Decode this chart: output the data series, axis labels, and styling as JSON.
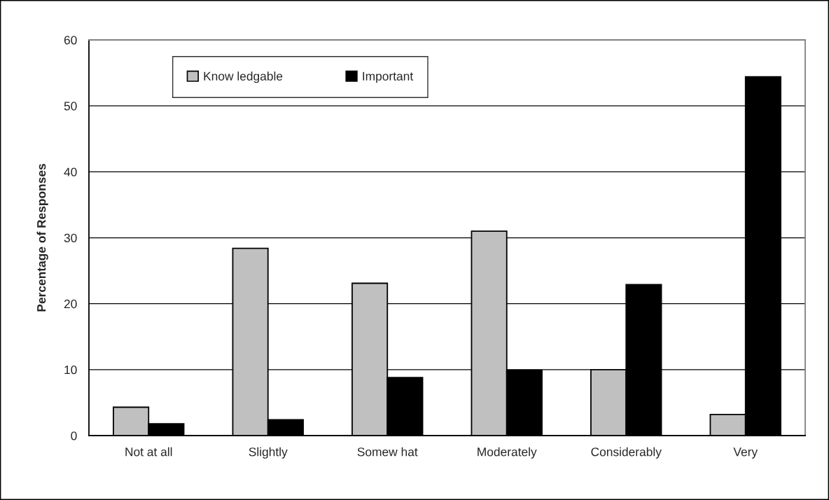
{
  "chart_data": {
    "type": "bar",
    "ylabel": "Percentage of Responses",
    "categories": [
      "Not at all",
      "Slightly",
      "Somew hat",
      "Moderately",
      "Considerably",
      "Very"
    ],
    "series": [
      {
        "name": "Know ledgable",
        "color": "#c0c0c0",
        "values": [
          4.3,
          28.4,
          23.1,
          31.0,
          10.0,
          3.2
        ]
      },
      {
        "name": "Important",
        "color": "#000000",
        "values": [
          1.8,
          2.4,
          8.8,
          9.9,
          22.9,
          54.4
        ]
      }
    ],
    "ylim": [
      0,
      60
    ],
    "yticks": [
      0,
      10,
      20,
      30,
      40,
      50,
      60
    ],
    "grid": "y",
    "legend": "top left"
  }
}
